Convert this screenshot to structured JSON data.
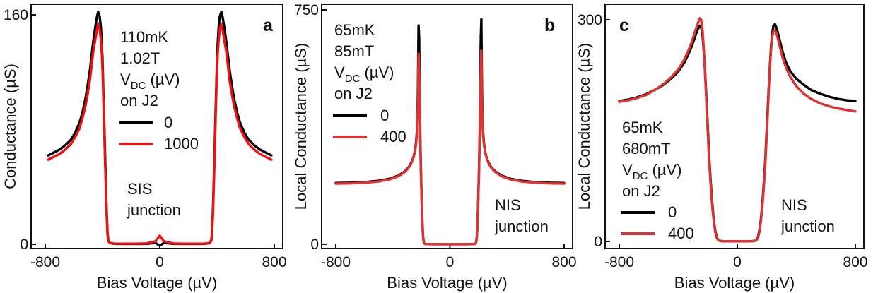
{
  "chart_data": [
    {
      "type": "line",
      "panel_label": "a",
      "xlabel": "Bias Voltage (µV)",
      "ylabel": "Conductance (µS)",
      "xlim": [
        -800,
        800
      ],
      "ylim": [
        0,
        160
      ],
      "xticks": [
        "-800",
        "0",
        "800"
      ],
      "yticks": [
        "0",
        "160"
      ],
      "legend_title": [
        "110mK",
        "1.02T",
        "V_DC (µV)",
        "on J2"
      ],
      "junction_label": [
        "SIS",
        "junction"
      ],
      "peak_center": 430,
      "series": [
        {
          "name": "0",
          "color": "#000000",
          "x": [
            -780,
            -740,
            -700,
            -660,
            -620,
            -590,
            -560,
            -540,
            -520,
            -505,
            -490,
            -478,
            -465,
            -450,
            -438,
            -430,
            -420,
            -412,
            -405,
            -400,
            -395,
            -388,
            -380,
            -372,
            -365,
            -360,
            -350,
            -330,
            -300,
            -200,
            -100,
            -30,
            0,
            30,
            100,
            200,
            300,
            330,
            350,
            360,
            365,
            372,
            380,
            388,
            395,
            400,
            405,
            412,
            420,
            430,
            438,
            450,
            465,
            478,
            490,
            505,
            520,
            540,
            560,
            590,
            620,
            660,
            700,
            740,
            780
          ],
          "y": [
            62,
            64,
            66,
            69,
            73,
            78,
            85,
            92,
            101,
            110,
            120,
            130,
            141,
            152,
            159,
            162,
            159,
            152,
            140,
            128,
            110,
            85,
            55,
            25,
            8,
            3,
            1,
            0.5,
            0.3,
            0.2,
            0.3,
            1,
            -1,
            1,
            0.3,
            0.2,
            0.3,
            0.5,
            1,
            3,
            8,
            25,
            55,
            85,
            110,
            128,
            140,
            152,
            159,
            162,
            159,
            152,
            141,
            130,
            120,
            110,
            101,
            92,
            85,
            78,
            73,
            69,
            66,
            64,
            62
          ]
        },
        {
          "name": "1000",
          "color": "#ee1111",
          "x": [
            -780,
            -740,
            -700,
            -660,
            -620,
            -590,
            -560,
            -540,
            -520,
            -505,
            -490,
            -478,
            -465,
            -450,
            -438,
            -430,
            -420,
            -412,
            -405,
            -400,
            -395,
            -388,
            -380,
            -372,
            -365,
            -360,
            -350,
            -330,
            -300,
            -200,
            -100,
            -30,
            0,
            30,
            100,
            200,
            300,
            330,
            350,
            360,
            365,
            372,
            380,
            388,
            395,
            400,
            405,
            412,
            420,
            430,
            438,
            450,
            465,
            478,
            490,
            505,
            520,
            540,
            560,
            590,
            620,
            660,
            700,
            740,
            780
          ],
          "y": [
            59,
            61,
            63,
            66,
            70,
            75,
            81,
            88,
            96,
            104,
            113,
            123,
            134,
            143,
            150,
            154,
            150,
            143,
            133,
            122,
            106,
            80,
            50,
            22,
            7,
            2.5,
            1,
            0.5,
            0.4,
            0.4,
            0.5,
            2,
            6,
            2,
            0.5,
            0.4,
            0.4,
            0.5,
            1,
            2.5,
            7,
            22,
            50,
            80,
            106,
            122,
            133,
            143,
            150,
            154,
            150,
            143,
            134,
            123,
            113,
            104,
            96,
            88,
            81,
            75,
            70,
            66,
            63,
            61,
            59
          ]
        }
      ]
    },
    {
      "type": "line",
      "panel_label": "b",
      "xlabel": "Bias Voltage (µV)",
      "ylabel": "Local Conductance (µS)",
      "xlim": [
        -800,
        800
      ],
      "ylim": [
        0,
        750
      ],
      "xticks": [
        "-800",
        "0",
        "800"
      ],
      "yticks": [
        "0",
        "750"
      ],
      "legend_title": [
        "65mK",
        "85mT",
        "V_DC (µV)",
        "on J2"
      ],
      "junction_label": [
        "NIS",
        "junction"
      ],
      "peak_center": 220,
      "series": [
        {
          "name": "0",
          "color": "#000000",
          "x": [
            -800,
            -700,
            -600,
            -500,
            -420,
            -360,
            -320,
            -290,
            -270,
            -255,
            -245,
            -238,
            -232,
            -228,
            -224,
            -220,
            -216,
            -212,
            -208,
            -204,
            -200,
            -196,
            -192,
            -188,
            -184,
            -180,
            -175,
            -160,
            -100,
            0,
            100,
            160,
            175,
            180,
            184,
            188,
            192,
            196,
            200,
            204,
            208,
            212,
            216,
            220,
            224,
            228,
            232,
            238,
            245,
            255,
            270,
            290,
            320,
            360,
            420,
            500,
            600,
            700,
            800
          ],
          "y": [
            196,
            197,
            199,
            203,
            210,
            220,
            232,
            246,
            262,
            280,
            300,
            325,
            360,
            410,
            520,
            700,
            660,
            480,
            350,
            250,
            180,
            110,
            60,
            25,
            8,
            3,
            1,
            0.5,
            0.3,
            0.2,
            0.3,
            0.5,
            1,
            3,
            8,
            25,
            60,
            110,
            180,
            250,
            350,
            480,
            660,
            720,
            520,
            410,
            360,
            325,
            300,
            280,
            262,
            246,
            232,
            220,
            210,
            203,
            199,
            197,
            196
          ]
        },
        {
          "name": "400",
          "color": "#dd3333",
          "x": [
            -800,
            -700,
            -600,
            -500,
            -420,
            -360,
            -320,
            -290,
            -270,
            -255,
            -245,
            -238,
            -232,
            -228,
            -224,
            -220,
            -216,
            -212,
            -208,
            -204,
            -200,
            -196,
            -192,
            -188,
            -184,
            -180,
            -175,
            -160,
            -100,
            0,
            100,
            160,
            175,
            180,
            184,
            188,
            192,
            196,
            200,
            204,
            208,
            212,
            216,
            220,
            224,
            228,
            232,
            238,
            245,
            255,
            270,
            290,
            320,
            360,
            420,
            500,
            600,
            700,
            800
          ],
          "y": [
            194,
            195,
            197,
            201,
            208,
            218,
            230,
            244,
            260,
            278,
            297,
            320,
            350,
            395,
            480,
            610,
            575,
            440,
            330,
            240,
            172,
            105,
            56,
            22,
            7,
            2.5,
            1,
            0.5,
            0.3,
            0.2,
            0.3,
            0.5,
            1,
            2.5,
            7,
            22,
            56,
            105,
            172,
            240,
            330,
            440,
            575,
            620,
            480,
            395,
            350,
            320,
            297,
            278,
            260,
            244,
            230,
            218,
            208,
            201,
            197,
            195,
            194
          ]
        }
      ]
    },
    {
      "type": "line",
      "panel_label": "c",
      "xlabel": "Bias Voltage (µV)",
      "ylabel": "Local Conductance (µS)",
      "xlim": [
        -800,
        800
      ],
      "ylim": [
        0,
        300
      ],
      "xticks": [
        "-800",
        "0",
        "800"
      ],
      "yticks": [
        "0",
        "300"
      ],
      "legend_title": [
        "65mK",
        "680mT",
        "V_DC (µV)",
        "on J2"
      ],
      "junction_label": [
        "NIS",
        "junction"
      ],
      "peak_center": 230,
      "series": [
        {
          "name": "0",
          "color": "#000000",
          "x": [
            -800,
            -740,
            -680,
            -620,
            -560,
            -500,
            -450,
            -400,
            -360,
            -330,
            -305,
            -285,
            -268,
            -255,
            -245,
            -235,
            -228,
            -220,
            -212,
            -205,
            -198,
            -190,
            -180,
            -170,
            -160,
            -150,
            -140,
            -130,
            -120,
            -110,
            -100,
            -60,
            0,
            60,
            100,
            110,
            120,
            130,
            140,
            150,
            160,
            170,
            180,
            190,
            198,
            205,
            212,
            220,
            228,
            235,
            245,
            255,
            268,
            285,
            305,
            330,
            360,
            400,
            450,
            500,
            560,
            620,
            680,
            740,
            800
          ],
          "y": [
            190,
            192,
            195,
            199,
            205,
            212,
            220,
            230,
            242,
            254,
            266,
            278,
            287,
            292,
            290,
            278,
            260,
            235,
            205,
            175,
            145,
            112,
            80,
            52,
            30,
            15,
            6,
            2,
            1,
            0.6,
            0.4,
            0.3,
            0.3,
            0.3,
            0.4,
            0.6,
            1,
            2,
            6,
            15,
            30,
            52,
            80,
            112,
            145,
            175,
            205,
            235,
            262,
            280,
            292,
            294,
            288,
            274,
            258,
            242,
            230,
            220,
            212,
            205,
            200,
            196,
            193,
            191,
            190
          ]
        },
        {
          "name": "400",
          "color": "#dd3333",
          "x": [
            -800,
            -740,
            -680,
            -620,
            -560,
            -500,
            -450,
            -400,
            -360,
            -330,
            -305,
            -285,
            -268,
            -255,
            -245,
            -235,
            -228,
            -220,
            -212,
            -205,
            -198,
            -190,
            -180,
            -170,
            -160,
            -150,
            -140,
            -130,
            -120,
            -110,
            -100,
            -60,
            0,
            60,
            100,
            110,
            120,
            130,
            140,
            150,
            160,
            170,
            180,
            190,
            198,
            205,
            212,
            220,
            228,
            235,
            245,
            255,
            268,
            285,
            305,
            330,
            360,
            400,
            450,
            500,
            560,
            620,
            680,
            740,
            800
          ],
          "y": [
            189,
            191,
            194,
            198,
            205,
            213,
            222,
            233,
            246,
            259,
            272,
            285,
            295,
            302,
            300,
            285,
            262,
            233,
            200,
            168,
            138,
            106,
            75,
            48,
            28,
            13,
            5,
            2,
            1,
            0.6,
            0.4,
            0.3,
            0.3,
            0.3,
            0.4,
            0.6,
            1,
            2,
            5,
            13,
            28,
            48,
            75,
            106,
            138,
            168,
            200,
            233,
            258,
            275,
            285,
            286,
            280,
            266,
            250,
            235,
            222,
            210,
            200,
            193,
            187,
            183,
            180,
            178,
            176
          ]
        }
      ]
    }
  ]
}
